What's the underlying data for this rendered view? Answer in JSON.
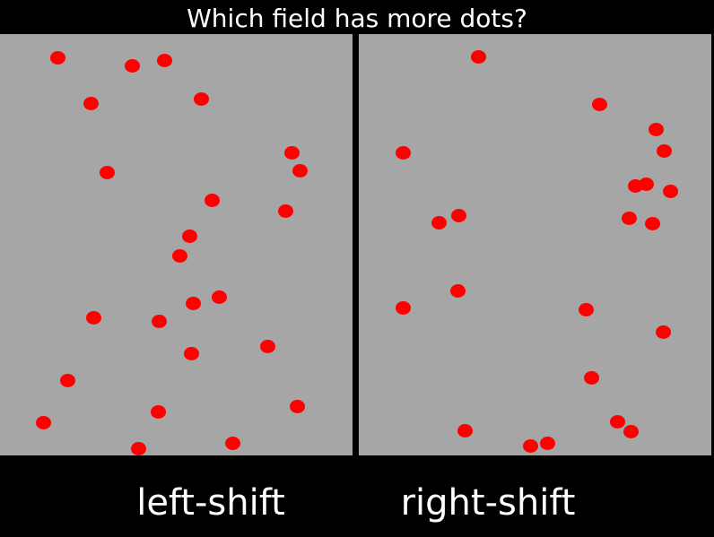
{
  "prompt": "Which field has more dots?",
  "dot_color": "#ff0000",
  "field_color": "#a6a6a6",
  "background_color": "#000000",
  "fields": [
    {
      "id": "left",
      "dot_count": 24,
      "option_label": "left-shift"
    },
    {
      "id": "right",
      "dot_count": 22,
      "option_label": "right-shift"
    }
  ]
}
